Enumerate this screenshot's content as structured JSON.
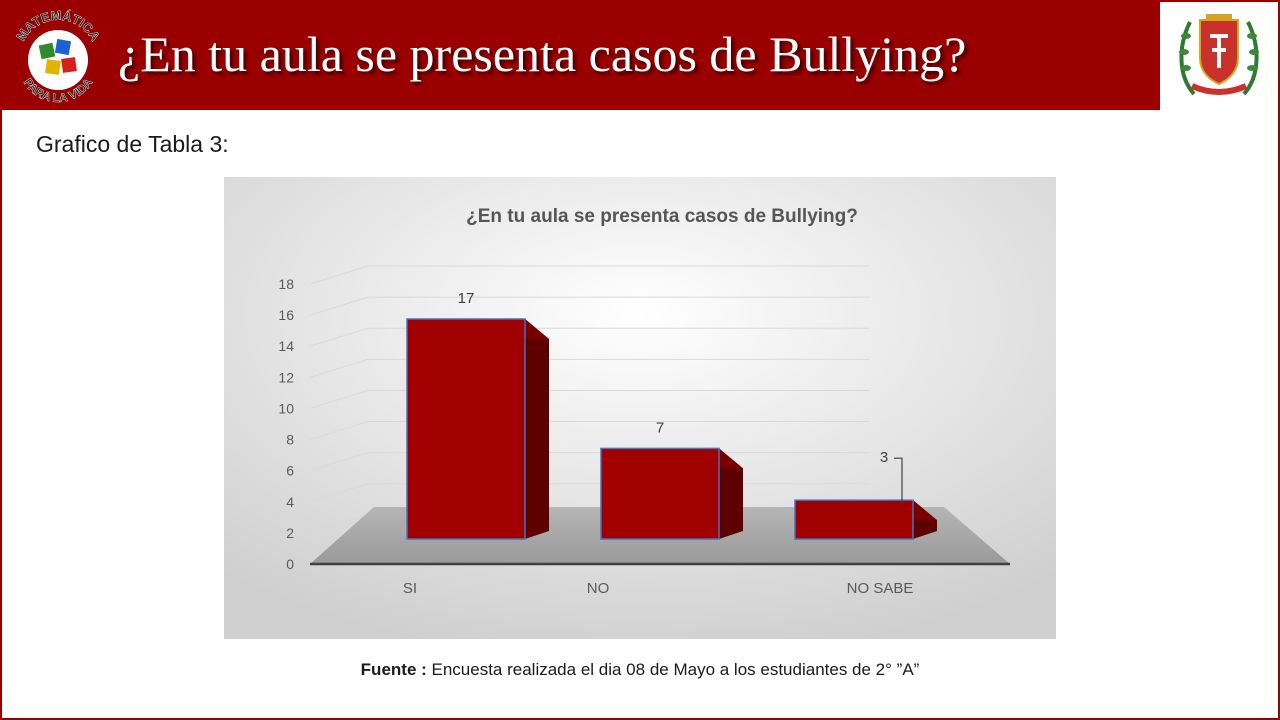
{
  "header": {
    "title": "¿En tu aula se presenta casos de Bullying?",
    "logo_left_text_top": "MATEMÁTICA",
    "logo_left_text_bottom": "PARA LA VIDA"
  },
  "subtitle": "Grafico de Tabla 3:",
  "source": {
    "label": "Fuente :",
    "text": " Encuesta realizada el dia 08 de Mayo a los estudiantes de 2° ”A”"
  },
  "colors": {
    "header_bg": "#9a0000",
    "bar_front": "#a00000",
    "bar_side": "#5e0000",
    "bar_top": "#7a0000",
    "bar_outline": "#4472c4",
    "plot_floor": "#a6a6a6"
  },
  "chart_data": {
    "type": "bar",
    "title": "¿En tu aula se presenta casos de Bullying?",
    "categories": [
      "SI",
      "NO",
      "NO SABE"
    ],
    "values": [
      17,
      7,
      3
    ],
    "data_labels": [
      "17",
      "7",
      "3"
    ],
    "ylim": [
      0,
      18
    ],
    "yticks": [
      "0",
      "2",
      "4",
      "6",
      "8",
      "10",
      "12",
      "14",
      "16",
      "18"
    ],
    "grid": true,
    "style": "3d-column"
  }
}
